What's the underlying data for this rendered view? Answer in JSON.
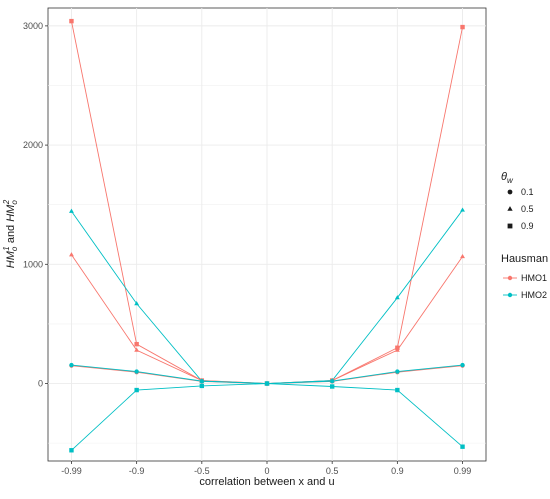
{
  "chart_data": {
    "type": "line",
    "xlabel": "correlation between x and u",
    "ylabel": {
      "base1": "HM",
      "sub1": "o",
      "sup1": "1",
      "mid": " and ",
      "base2": "HM",
      "sub2": "o",
      "sup2": "2"
    },
    "categories": [
      "-0.99",
      "-0.9",
      "-0.5",
      "0",
      "0.5",
      "0.9",
      "0.99"
    ],
    "ylim": [
      -650,
      3150
    ],
    "yticks": [
      0,
      1000,
      2000,
      3000
    ],
    "grid": true,
    "legend_position": "right",
    "shape_legend": {
      "title_base": "θ",
      "title_sub": "w",
      "entries": [
        {
          "label": "0.1",
          "shape": "circle"
        },
        {
          "label": "0.5",
          "shape": "triangle"
        },
        {
          "label": "0.9",
          "shape": "square"
        }
      ]
    },
    "color_legend": {
      "title": "Hausman",
      "entries": [
        {
          "label": "HMO1",
          "color": "#F8766D"
        },
        {
          "label": "HMO2",
          "color": "#00BFC4"
        }
      ]
    },
    "series": [
      {
        "name": "HMO1",
        "theta": "0.1",
        "shape": "circle",
        "color": "#F8766D",
        "values": [
          150,
          95,
          18,
          0,
          18,
          95,
          150
        ]
      },
      {
        "name": "HMO1",
        "theta": "0.5",
        "shape": "triangle",
        "color": "#F8766D",
        "values": [
          1080,
          280,
          25,
          0,
          25,
          280,
          1065
        ]
      },
      {
        "name": "HMO1",
        "theta": "0.9",
        "shape": "square",
        "color": "#F8766D",
        "values": [
          3040,
          330,
          25,
          0,
          25,
          300,
          2990
        ]
      },
      {
        "name": "HMO2",
        "theta": "0.1",
        "shape": "circle",
        "color": "#00BFC4",
        "values": [
          155,
          100,
          20,
          0,
          20,
          100,
          155
        ]
      },
      {
        "name": "HMO2",
        "theta": "0.5",
        "shape": "triangle",
        "color": "#00BFC4",
        "values": [
          1445,
          670,
          20,
          0,
          25,
          720,
          1455
        ]
      },
      {
        "name": "HMO2",
        "theta": "0.9",
        "shape": "square",
        "color": "#00BFC4",
        "values": [
          -560,
          -55,
          -20,
          0,
          -25,
          -55,
          -530
        ]
      }
    ]
  }
}
